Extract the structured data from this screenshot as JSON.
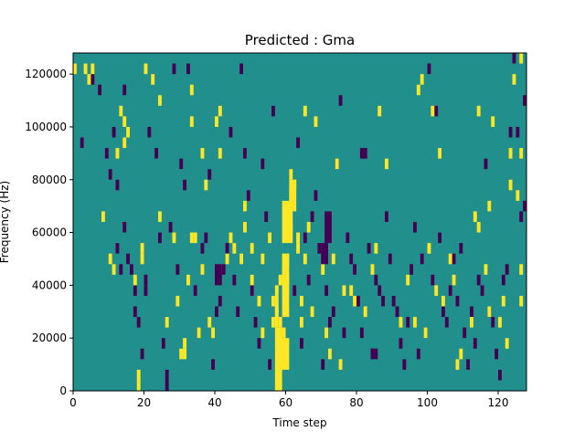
{
  "chart_data": {
    "type": "heatmap",
    "title": "Predicted : Gma",
    "xlabel": "Time step",
    "ylabel": "Frequency (Hz)",
    "xlim": [
      0,
      128
    ],
    "ylim": [
      0,
      128000
    ],
    "x_ticks": [
      0,
      20,
      40,
      60,
      80,
      100,
      120
    ],
    "x_tick_labels": [
      "0",
      "20",
      "40",
      "60",
      "80",
      "100",
      "120"
    ],
    "y_ticks": [
      0,
      20000,
      40000,
      60000,
      80000,
      100000,
      120000
    ],
    "y_tick_labels": [
      "0",
      "20000",
      "40000",
      "60000",
      "80000",
      "100000",
      "120000"
    ],
    "grid": false,
    "legend": "none",
    "colors": {
      "background": "#21908d",
      "low": "#440154",
      "high": "#fde725"
    },
    "freq_bin_hz": 4000,
    "cells_high": [
      [
        0,
        120000
      ],
      [
        3,
        120000
      ],
      [
        4,
        116000
      ],
      [
        5,
        120000
      ],
      [
        8,
        64000
      ],
      [
        10,
        48000
      ],
      [
        11,
        44000
      ],
      [
        12,
        88000
      ],
      [
        13,
        104000
      ],
      [
        14,
        100000
      ],
      [
        14,
        92000
      ],
      [
        15,
        96000
      ],
      [
        17,
        40000
      ],
      [
        18,
        0
      ],
      [
        18,
        4000
      ],
      [
        19,
        48000
      ],
      [
        19,
        52000
      ],
      [
        20,
        120000
      ],
      [
        22,
        116000
      ],
      [
        24,
        108000
      ],
      [
        24,
        64000
      ],
      [
        26,
        24000
      ],
      [
        28,
        56000
      ],
      [
        29,
        32000
      ],
      [
        30,
        12000
      ],
      [
        31,
        12000
      ],
      [
        31,
        16000
      ],
      [
        32,
        40000
      ],
      [
        33,
        100000
      ],
      [
        33,
        112000
      ],
      [
        33,
        56000
      ],
      [
        34,
        56000
      ],
      [
        35,
        20000
      ],
      [
        36,
        88000
      ],
      [
        36,
        44000
      ],
      [
        37,
        76000
      ],
      [
        38,
        24000
      ],
      [
        39,
        20000
      ],
      [
        40,
        100000
      ],
      [
        41,
        88000
      ],
      [
        41,
        104000
      ],
      [
        43,
        48000
      ],
      [
        44,
        56000
      ],
      [
        45,
        52000
      ],
      [
        47,
        48000
      ],
      [
        48,
        68000
      ],
      [
        48,
        60000
      ],
      [
        50,
        52000
      ],
      [
        50,
        40000
      ],
      [
        52,
        32000
      ],
      [
        53,
        48000
      ],
      [
        53,
        20000
      ],
      [
        55,
        56000
      ],
      [
        56,
        24000
      ],
      [
        56,
        32000
      ],
      [
        57,
        28000
      ],
      [
        57,
        36000
      ],
      [
        58,
        16000
      ],
      [
        58,
        24000
      ],
      [
        58,
        40000
      ],
      [
        59,
        20000
      ],
      [
        59,
        44000
      ],
      [
        60,
        40000
      ],
      [
        60,
        48000
      ],
      [
        60,
        64000
      ],
      [
        61,
        72000
      ],
      [
        61,
        80000
      ],
      [
        61,
        60000
      ],
      [
        62,
        68000
      ],
      [
        62,
        76000
      ],
      [
        63,
        56000
      ],
      [
        63,
        52000
      ],
      [
        64,
        32000
      ],
      [
        64,
        24000
      ],
      [
        65,
        104000
      ],
      [
        65,
        48000
      ],
      [
        66,
        60000
      ],
      [
        67,
        28000
      ],
      [
        68,
        100000
      ],
      [
        70,
        44000
      ],
      [
        71,
        20000
      ],
      [
        72,
        12000
      ],
      [
        73,
        48000
      ],
      [
        74,
        84000
      ],
      [
        75,
        8000
      ],
      [
        76,
        36000
      ],
      [
        78,
        36000
      ],
      [
        79,
        32000
      ],
      [
        82,
        28000
      ],
      [
        84,
        44000
      ],
      [
        85,
        52000
      ],
      [
        86,
        104000
      ],
      [
        88,
        84000
      ],
      [
        92,
        24000
      ],
      [
        94,
        40000
      ],
      [
        96,
        24000
      ],
      [
        97,
        112000
      ],
      [
        98,
        116000
      ],
      [
        99,
        20000
      ],
      [
        100,
        52000
      ],
      [
        101,
        104000
      ],
      [
        102,
        36000
      ],
      [
        104,
        32000
      ],
      [
        106,
        48000
      ],
      [
        107,
        40000
      ],
      [
        108,
        8000
      ],
      [
        109,
        12000
      ],
      [
        112,
        24000
      ],
      [
        113,
        64000
      ],
      [
        114,
        104000
      ],
      [
        116,
        44000
      ],
      [
        117,
        68000
      ],
      [
        117,
        28000
      ],
      [
        118,
        100000
      ],
      [
        120,
        24000
      ],
      [
        121,
        32000
      ],
      [
        122,
        16000
      ],
      [
        123,
        88000
      ],
      [
        123,
        76000
      ],
      [
        124,
        116000
      ],
      [
        125,
        72000
      ],
      [
        126,
        32000
      ],
      [
        126,
        88000
      ],
      [
        126,
        124000
      ],
      [
        126,
        44000
      ],
      [
        114,
        60000
      ],
      [
        103,
        88000
      ]
    ],
    "cells_low": [
      [
        2,
        92000
      ],
      [
        5,
        116000
      ],
      [
        7,
        112000
      ],
      [
        9,
        88000
      ],
      [
        10,
        80000
      ],
      [
        11,
        96000
      ],
      [
        12,
        76000
      ],
      [
        12,
        52000
      ],
      [
        13,
        44000
      ],
      [
        14,
        112000
      ],
      [
        14,
        60000
      ],
      [
        15,
        48000
      ],
      [
        16,
        44000
      ],
      [
        17,
        36000
      ],
      [
        17,
        28000
      ],
      [
        18,
        24000
      ],
      [
        19,
        12000
      ],
      [
        20,
        36000
      ],
      [
        20,
        40000
      ],
      [
        21,
        96000
      ],
      [
        23,
        88000
      ],
      [
        24,
        56000
      ],
      [
        25,
        16000
      ],
      [
        26,
        4000
      ],
      [
        26,
        0
      ],
      [
        27,
        60000
      ],
      [
        28,
        120000
      ],
      [
        29,
        44000
      ],
      [
        30,
        84000
      ],
      [
        31,
        76000
      ],
      [
        32,
        120000
      ],
      [
        34,
        36000
      ],
      [
        35,
        20000
      ],
      [
        36,
        52000
      ],
      [
        37,
        56000
      ],
      [
        38,
        80000
      ],
      [
        39,
        8000
      ],
      [
        40,
        28000
      ],
      [
        41,
        32000
      ],
      [
        42,
        44000
      ],
      [
        43,
        52000
      ],
      [
        44,
        96000
      ],
      [
        45,
        40000
      ],
      [
        46,
        28000
      ],
      [
        47,
        120000
      ],
      [
        48,
        88000
      ],
      [
        49,
        72000
      ],
      [
        50,
        36000
      ],
      [
        51,
        24000
      ],
      [
        52,
        16000
      ],
      [
        53,
        84000
      ],
      [
        54,
        64000
      ],
      [
        55,
        8000
      ],
      [
        56,
        104000
      ],
      [
        57,
        12000
      ],
      [
        58,
        20000
      ],
      [
        59,
        44000
      ],
      [
        60,
        32000
      ],
      [
        61,
        60000
      ],
      [
        62,
        36000
      ],
      [
        63,
        92000
      ],
      [
        64,
        16000
      ],
      [
        65,
        56000
      ],
      [
        66,
        40000
      ],
      [
        67,
        64000
      ],
      [
        68,
        72000
      ],
      [
        69,
        52000
      ],
      [
        70,
        8000
      ],
      [
        71,
        36000
      ],
      [
        72,
        24000
      ],
      [
        73,
        28000
      ],
      [
        74,
        84000
      ],
      [
        75,
        108000
      ],
      [
        76,
        20000
      ],
      [
        77,
        56000
      ],
      [
        78,
        48000
      ],
      [
        79,
        44000
      ],
      [
        80,
        32000
      ],
      [
        81,
        20000
      ],
      [
        82,
        88000
      ],
      [
        83,
        52000
      ],
      [
        84,
        12000
      ],
      [
        85,
        40000
      ],
      [
        86,
        36000
      ],
      [
        87,
        32000
      ],
      [
        88,
        64000
      ],
      [
        89,
        48000
      ],
      [
        90,
        32000
      ],
      [
        91,
        28000
      ],
      [
        92,
        16000
      ],
      [
        93,
        8000
      ],
      [
        94,
        24000
      ],
      [
        95,
        44000
      ],
      [
        96,
        60000
      ],
      [
        97,
        12000
      ],
      [
        98,
        48000
      ],
      [
        99,
        20000
      ],
      [
        100,
        120000
      ],
      [
        101,
        40000
      ],
      [
        102,
        104000
      ],
      [
        103,
        56000
      ],
      [
        104,
        28000
      ],
      [
        105,
        24000
      ],
      [
        106,
        36000
      ],
      [
        107,
        48000
      ],
      [
        108,
        32000
      ],
      [
        109,
        52000
      ],
      [
        110,
        20000
      ],
      [
        111,
        8000
      ],
      [
        112,
        28000
      ],
      [
        113,
        16000
      ],
      [
        114,
        40000
      ],
      [
        115,
        36000
      ],
      [
        116,
        84000
      ],
      [
        117,
        28000
      ],
      [
        118,
        24000
      ],
      [
        119,
        12000
      ],
      [
        120,
        4000
      ],
      [
        121,
        40000
      ],
      [
        122,
        44000
      ],
      [
        123,
        96000
      ],
      [
        124,
        124000
      ],
      [
        125,
        96000
      ],
      [
        126,
        64000
      ],
      [
        127,
        68000
      ],
      [
        127,
        108000
      ]
    ],
    "blocks_high": [
      [
        57,
        59,
        0,
        24000
      ],
      [
        57,
        58,
        24000,
        36000
      ],
      [
        58,
        61,
        8000,
        20000
      ],
      [
        59,
        61,
        28000,
        52000
      ],
      [
        59,
        62,
        56000,
        72000
      ],
      [
        61,
        63,
        72000,
        80000
      ]
    ],
    "blocks_low": [
      [
        71,
        73,
        56000,
        68000
      ],
      [
        70,
        72,
        48000,
        56000
      ],
      [
        81,
        83,
        88000,
        92000
      ],
      [
        84,
        86,
        12000,
        16000
      ],
      [
        40,
        42,
        40000,
        48000
      ]
    ]
  }
}
